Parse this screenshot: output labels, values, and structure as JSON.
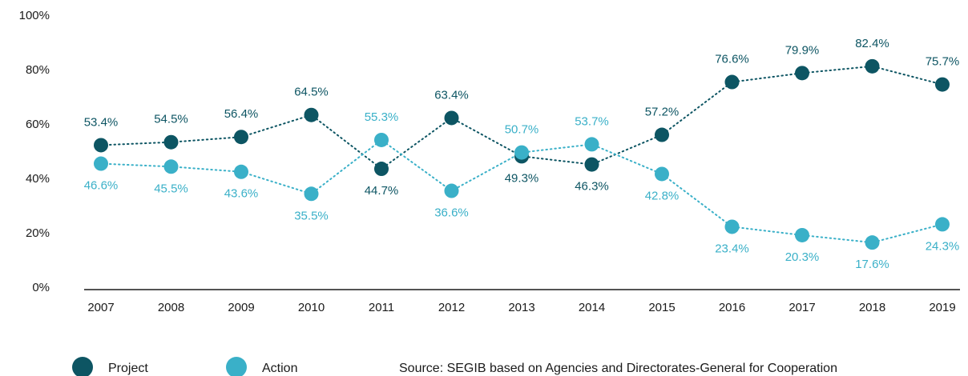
{
  "chart_data": {
    "type": "line",
    "categories": [
      "2007",
      "2008",
      "2009",
      "2010",
      "2011",
      "2012",
      "2013",
      "2014",
      "2015",
      "2016",
      "2017",
      "2018",
      "2019"
    ],
    "series": [
      {
        "name": "Project",
        "color": "#0d5563",
        "values": [
          53.4,
          54.5,
          56.4,
          64.5,
          44.7,
          63.4,
          49.3,
          46.3,
          57.2,
          76.6,
          79.9,
          82.4,
          75.7
        ],
        "value_labels": [
          "53.4%",
          "54.5%",
          "56.4%",
          "64.5%",
          "44.7%",
          "63.4%",
          "49.3%",
          "46.3%",
          "57.2%",
          "76.6%",
          "79.9%",
          "82.4%",
          "75.7%"
        ]
      },
      {
        "name": "Action",
        "color": "#3ab0c8",
        "values": [
          46.6,
          45.5,
          43.6,
          35.5,
          55.3,
          36.6,
          50.7,
          53.7,
          42.8,
          23.4,
          20.3,
          17.6,
          24.3
        ],
        "value_labels": [
          "46.6%",
          "45.5%",
          "43.6%",
          "35.5%",
          "55.3%",
          "36.6%",
          "50.7%",
          "53.7%",
          "42.8%",
          "23.4%",
          "20.3%",
          "17.6%",
          "24.3%"
        ]
      }
    ],
    "ylim": [
      0,
      100
    ],
    "yticks": [
      {
        "value": 0,
        "label": "0%"
      },
      {
        "value": 20,
        "label": "20%"
      },
      {
        "value": 40,
        "label": "40%"
      },
      {
        "value": 60,
        "label": "60%"
      },
      {
        "value": 80,
        "label": "80%"
      },
      {
        "value": 100,
        "label": "100%"
      }
    ],
    "grid": false,
    "legend": "bottom-left",
    "source": "Source: SEGIB based on Agencies and Directorates-General for Cooperation"
  }
}
